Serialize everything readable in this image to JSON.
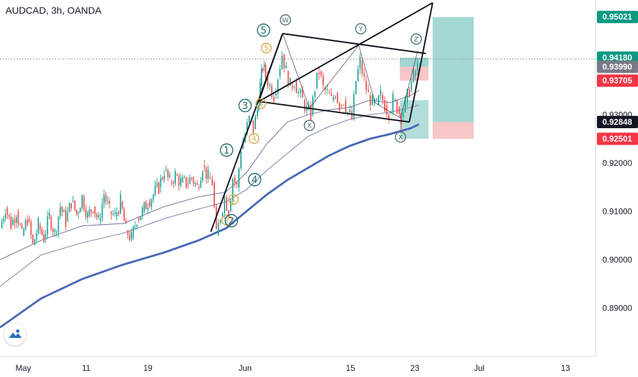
{
  "header": {
    "symbol_title": "AUDCAD, 3h, OANDA"
  },
  "colors": {
    "candle_up": "#26a69a",
    "candle_down": "#ef5350",
    "ma_fast": "#8e8fb5",
    "ma_slow": "#4a69b8",
    "pattern_lines": "#131722",
    "profit_zone": "#80c7c0",
    "loss_zone": "#f4b3b7",
    "wave_orange": "#d9a441",
    "wave_teal": "#1f6a6e",
    "tag_green": "#089981",
    "tag_red": "#f23645",
    "tag_gray": "#787b86",
    "tag_dark": "#131722"
  },
  "chart_data": {
    "type": "candlestick",
    "symbol": "AUDCAD",
    "timeframe": "3h",
    "broker": "OANDA",
    "x_ticks": [
      "May",
      "11",
      "19",
      "Jun",
      "15",
      "23",
      "Jul",
      "13"
    ],
    "y_ticks": [
      "0.89000",
      "0.90000",
      "0.91000",
      "0.92000",
      "0.93000",
      "0.94000",
      "0.95000"
    ],
    "ylim": [
      0.88,
      0.9523
    ],
    "price_tags": [
      {
        "label": "0.95021",
        "value": 0.95021,
        "color": "green"
      },
      {
        "label": "0.94180",
        "value": 0.9418,
        "color": "green"
      },
      {
        "label": "0.93990",
        "value": 0.9399,
        "color": "gray"
      },
      {
        "label": "0.93705",
        "value": 0.93705,
        "color": "red"
      },
      {
        "label": "0.92848",
        "value": 0.92848,
        "color": "dark"
      },
      {
        "label": "0.92501",
        "value": 0.92501,
        "color": "red"
      }
    ],
    "price_path": [
      [
        0,
        0.9065
      ],
      [
        8,
        0.9108
      ],
      [
        16,
        0.9072
      ],
      [
        24,
        0.91
      ],
      [
        32,
        0.905
      ],
      [
        40,
        0.9085
      ],
      [
        48,
        0.903
      ],
      [
        56,
        0.9072
      ],
      [
        64,
        0.9045
      ],
      [
        72,
        0.909
      ],
      [
        80,
        0.9055
      ],
      [
        88,
        0.911
      ],
      [
        96,
        0.908
      ],
      [
        104,
        0.912
      ],
      [
        112,
        0.9095
      ],
      [
        120,
        0.913
      ],
      [
        128,
        0.909
      ],
      [
        136,
        0.911
      ],
      [
        144,
        0.908
      ],
      [
        152,
        0.9135
      ],
      [
        160,
        0.91
      ],
      [
        168,
        0.909
      ],
      [
        176,
        0.912
      ],
      [
        184,
        0.906
      ],
      [
        192,
        0.9045
      ],
      [
        200,
        0.9085
      ],
      [
        208,
        0.91
      ],
      [
        216,
        0.912
      ],
      [
        224,
        0.9135
      ],
      [
        232,
        0.915
      ],
      [
        240,
        0.9185
      ],
      [
        248,
        0.916
      ],
      [
        256,
        0.9175
      ],
      [
        264,
        0.916
      ],
      [
        272,
        0.9158
      ],
      [
        280,
        0.917
      ],
      [
        288,
        0.915
      ],
      [
        296,
        0.9195
      ],
      [
        304,
        0.917
      ],
      [
        310,
        0.916
      ],
      [
        316,
        0.905
      ],
      [
        322,
        0.909
      ],
      [
        328,
        0.913
      ],
      [
        334,
        0.91
      ],
      [
        340,
        0.917
      ],
      [
        346,
        0.915
      ],
      [
        352,
        0.923
      ],
      [
        358,
        0.926
      ],
      [
        364,
        0.929
      ],
      [
        370,
        0.927
      ],
      [
        376,
        0.931
      ],
      [
        380,
        0.936
      ],
      [
        384,
        0.94
      ],
      [
        388,
        0.938
      ],
      [
        394,
        0.936
      ],
      [
        400,
        0.934
      ],
      [
        406,
        0.938
      ],
      [
        412,
        0.9425
      ],
      [
        418,
        0.939
      ],
      [
        424,
        0.936
      ],
      [
        430,
        0.937
      ],
      [
        436,
        0.9345
      ],
      [
        442,
        0.933
      ],
      [
        448,
        0.931
      ],
      [
        454,
        0.93
      ],
      [
        460,
        0.9355
      ],
      [
        466,
        0.939
      ],
      [
        472,
        0.9355
      ],
      [
        478,
        0.9345
      ],
      [
        484,
        0.933
      ],
      [
        490,
        0.9345
      ],
      [
        496,
        0.932
      ],
      [
        502,
        0.933
      ],
      [
        508,
        0.9305
      ],
      [
        514,
        0.929
      ],
      [
        520,
        0.937
      ],
      [
        526,
        0.941
      ],
      [
        532,
        0.937
      ],
      [
        538,
        0.934
      ],
      [
        544,
        0.9325
      ],
      [
        550,
        0.932
      ],
      [
        556,
        0.934
      ],
      [
        562,
        0.932
      ],
      [
        568,
        0.9305
      ],
      [
        574,
        0.933
      ],
      [
        580,
        0.9315
      ],
      [
        586,
        0.9295
      ],
      [
        592,
        0.9325
      ],
      [
        598,
        0.935
      ],
      [
        604,
        0.938
      ],
      [
        610,
        0.9399
      ]
    ],
    "ma_fast_path": [
      [
        0,
        0.9
      ],
      [
        60,
        0.904
      ],
      [
        120,
        0.907
      ],
      [
        180,
        0.9075
      ],
      [
        240,
        0.911
      ],
      [
        290,
        0.913
      ],
      [
        330,
        0.914
      ],
      [
        360,
        0.918
      ],
      [
        390,
        0.924
      ],
      [
        420,
        0.9285
      ],
      [
        450,
        0.93
      ],
      [
        480,
        0.931
      ],
      [
        510,
        0.9315
      ],
      [
        540,
        0.933
      ],
      [
        570,
        0.9325
      ],
      [
        600,
        0.934
      ],
      [
        612,
        0.935
      ]
    ],
    "ma_mid_path": [
      [
        0,
        0.8945
      ],
      [
        60,
        0.901
      ],
      [
        120,
        0.9035
      ],
      [
        180,
        0.9055
      ],
      [
        240,
        0.9085
      ],
      [
        290,
        0.9105
      ],
      [
        330,
        0.912
      ],
      [
        360,
        0.9145
      ],
      [
        390,
        0.9185
      ],
      [
        420,
        0.922
      ],
      [
        450,
        0.9255
      ],
      [
        480,
        0.9275
      ],
      [
        510,
        0.929
      ],
      [
        540,
        0.93
      ],
      [
        570,
        0.9305
      ],
      [
        600,
        0.9315
      ],
      [
        612,
        0.932
      ]
    ],
    "ma_slow_path": [
      [
        0,
        0.886
      ],
      [
        60,
        0.892
      ],
      [
        120,
        0.896
      ],
      [
        180,
        0.899
      ],
      [
        240,
        0.9015
      ],
      [
        290,
        0.904
      ],
      [
        330,
        0.9065
      ],
      [
        360,
        0.91
      ],
      [
        390,
        0.9135
      ],
      [
        420,
        0.9165
      ],
      [
        450,
        0.919
      ],
      [
        480,
        0.9215
      ],
      [
        510,
        0.9235
      ],
      [
        540,
        0.925
      ],
      [
        570,
        0.926
      ],
      [
        600,
        0.9272
      ],
      [
        612,
        0.928
      ]
    ],
    "wave_labels_orange": [
      "1",
      "2",
      "3",
      "4",
      "5"
    ],
    "wave_labels_teal": [
      "1",
      "2",
      "3",
      "4",
      "5"
    ],
    "pattern_labels": [
      "W",
      "X",
      "Y",
      "X",
      "Z"
    ]
  }
}
